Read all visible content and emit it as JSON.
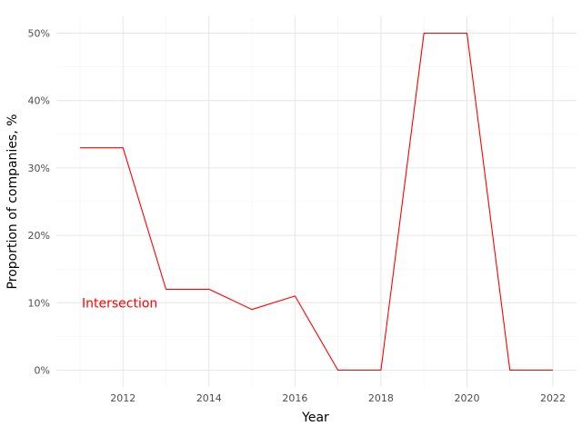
{
  "chart_data": {
    "type": "line",
    "xlabel": "Year",
    "ylabel": "Proportion of companies, %",
    "x": [
      2011,
      2012,
      2013,
      2014,
      2015,
      2016,
      2017,
      2018,
      2019,
      2020,
      2021,
      2022
    ],
    "series": [
      {
        "values": [
          33,
          33,
          12,
          12,
          9,
          11,
          0,
          0,
          50,
          50,
          0,
          0
        ],
        "color": "#ff0000"
      }
    ],
    "annotations": [
      {
        "text": "Intersection",
        "x": 2011,
        "y": 10,
        "color": "#ff0000"
      }
    ],
    "x_ticks": [
      2012,
      2014,
      2016,
      2018,
      2020,
      2022
    ],
    "x_tick_labels": [
      "2012",
      "2014",
      "2016",
      "2018",
      "2020",
      "2022"
    ],
    "y_ticks": [
      0,
      10,
      20,
      30,
      40,
      50
    ],
    "y_tick_labels": [
      "0%",
      "10%",
      "20%",
      "30%",
      "40%",
      "50%"
    ],
    "xlim": [
      2010.45,
      2022.55
    ],
    "ylim": [
      -2.5,
      52.5
    ],
    "grid": true,
    "legend": "none"
  }
}
